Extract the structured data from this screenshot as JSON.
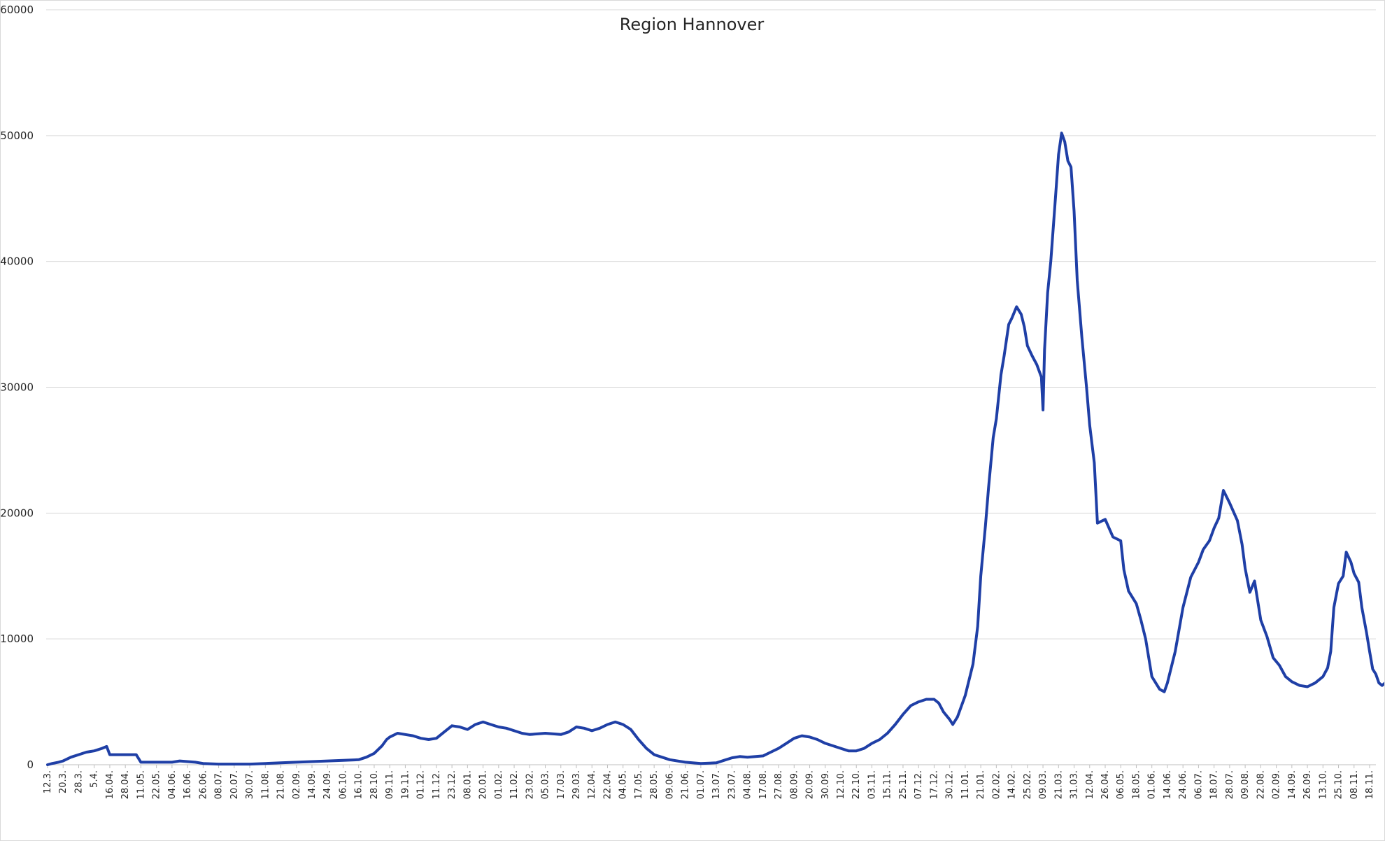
{
  "chart_data": {
    "type": "line",
    "title": "Region Hannover",
    "xlabel": "",
    "ylabel": "",
    "ylim": [
      0,
      60000
    ],
    "yticks": [
      0,
      10000,
      20000,
      30000,
      40000,
      50000,
      60000
    ],
    "ytick_labels": [
      "0",
      "10000",
      "20000",
      "30000",
      "40000",
      "50000",
      "60000"
    ],
    "grid": true,
    "legend": "none",
    "colors": {
      "series": "#1f3fa6",
      "grid": "#d9d9d9",
      "text": "#262626"
    },
    "categories": [
      "12.3.",
      "20.3.",
      "28.3.",
      "5.4.",
      "16.04.",
      "28.04.",
      "11.05.",
      "22.05.",
      "04.06.",
      "16.06.",
      "26.06.",
      "08.07.",
      "20.07.",
      "30.07.",
      "11.08.",
      "21.08.",
      "02.09.",
      "14.09.",
      "24.09.",
      "06.10.",
      "16.10.",
      "28.10.",
      "09.11.",
      "19.11.",
      "01.12.",
      "11.12.",
      "23.12.",
      "08.01.",
      "20.01.",
      "01.02.",
      "11.02.",
      "23.02.",
      "05.03.",
      "17.03.",
      "29.03.",
      "12.04.",
      "22.04.",
      "04.05.",
      "17.05.",
      "28.05.",
      "09.06.",
      "21.06.",
      "01.07.",
      "13.07.",
      "23.07.",
      "04.08.",
      "17.08.",
      "27.08.",
      "08.09.",
      "20.09.",
      "30.09.",
      "12.10.",
      "22.10.",
      "03.11.",
      "15.11.",
      "25.11.",
      "07.12.",
      "17.12.",
      "30.12.",
      "11.01.",
      "21.01.",
      "02.02.",
      "14.02.",
      "25.02.",
      "09.03.",
      "21.03.",
      "31.03.",
      "12.04.",
      "26.04.",
      "06.05.",
      "18.05.",
      "01.06.",
      "14.06.",
      "24.06.",
      "06.07.",
      "18.07.",
      "28.07.",
      "09.08.",
      "22.08.",
      "02.09.",
      "14.09.",
      "26.09.",
      "13.10.",
      "25.10.",
      "08.11.",
      "18.11."
    ],
    "series": [
      {
        "values": [
          [
            0,
            0
          ],
          [
            0.3,
            100
          ],
          [
            0.7,
            200
          ],
          [
            1,
            300
          ],
          [
            1.5,
            600
          ],
          [
            2,
            800
          ],
          [
            2.5,
            1000
          ],
          [
            3,
            1100
          ],
          [
            3.5,
            1300
          ],
          [
            3.8,
            1450
          ],
          [
            4,
            800
          ],
          [
            5,
            800
          ],
          [
            5.7,
            800
          ],
          [
            6,
            200
          ],
          [
            7,
            200
          ],
          [
            8,
            200
          ],
          [
            8.5,
            300
          ],
          [
            9,
            250
          ],
          [
            9.5,
            200
          ],
          [
            10,
            100
          ],
          [
            11,
            50
          ],
          [
            12,
            50
          ],
          [
            13,
            50
          ],
          [
            14,
            100
          ],
          [
            15,
            150
          ],
          [
            16,
            200
          ],
          [
            17,
            250
          ],
          [
            18,
            300
          ],
          [
            19,
            350
          ],
          [
            20,
            400
          ],
          [
            20.5,
            600
          ],
          [
            21,
            900
          ],
          [
            21.5,
            1500
          ],
          [
            21.8,
            2000
          ],
          [
            22,
            2200
          ],
          [
            22.5,
            2500
          ],
          [
            23,
            2400
          ],
          [
            23.5,
            2300
          ],
          [
            24,
            2100
          ],
          [
            24.5,
            2000
          ],
          [
            25,
            2100
          ],
          [
            25.5,
            2600
          ],
          [
            26,
            3100
          ],
          [
            26.5,
            3000
          ],
          [
            27,
            2800
          ],
          [
            27.5,
            3200
          ],
          [
            28,
            3400
          ],
          [
            28.5,
            3200
          ],
          [
            29,
            3000
          ],
          [
            29.5,
            2900
          ],
          [
            30,
            2700
          ],
          [
            30.5,
            2500
          ],
          [
            31,
            2400
          ],
          [
            32,
            2500
          ],
          [
            33,
            2400
          ],
          [
            33.5,
            2600
          ],
          [
            34,
            3000
          ],
          [
            34.5,
            2900
          ],
          [
            35,
            2700
          ],
          [
            35.5,
            2900
          ],
          [
            36,
            3200
          ],
          [
            36.5,
            3400
          ],
          [
            37,
            3200
          ],
          [
            37.5,
            2800
          ],
          [
            38,
            2000
          ],
          [
            38.5,
            1300
          ],
          [
            39,
            800
          ],
          [
            39.5,
            600
          ],
          [
            40,
            400
          ],
          [
            41,
            200
          ],
          [
            42,
            100
          ],
          [
            43,
            150
          ],
          [
            43.5,
            350
          ],
          [
            44,
            550
          ],
          [
            44.5,
            650
          ],
          [
            45,
            600
          ],
          [
            46,
            700
          ],
          [
            46.5,
            1000
          ],
          [
            47,
            1300
          ],
          [
            47.5,
            1700
          ],
          [
            48,
            2100
          ],
          [
            48.5,
            2300
          ],
          [
            49,
            2200
          ],
          [
            49.5,
            2000
          ],
          [
            50,
            1700
          ],
          [
            50.5,
            1500
          ],
          [
            51,
            1300
          ],
          [
            51.5,
            1100
          ],
          [
            52,
            1100
          ],
          [
            52.5,
            1300
          ],
          [
            53,
            1700
          ],
          [
            53.5,
            2000
          ],
          [
            54,
            2500
          ],
          [
            54.5,
            3200
          ],
          [
            55,
            4000
          ],
          [
            55.5,
            4700
          ],
          [
            56,
            5000
          ],
          [
            56.5,
            5200
          ],
          [
            57,
            5200
          ],
          [
            57.3,
            4900
          ],
          [
            57.6,
            4200
          ],
          [
            58,
            3600
          ],
          [
            58.2,
            3200
          ],
          [
            58.5,
            3800
          ],
          [
            59,
            5500
          ],
          [
            59.5,
            8000
          ],
          [
            59.8,
            11000
          ],
          [
            60,
            15000
          ],
          [
            60.3,
            19000
          ],
          [
            60.5,
            22000
          ],
          [
            60.8,
            26000
          ],
          [
            61,
            27500
          ],
          [
            61.3,
            31000
          ],
          [
            61.5,
            32500
          ],
          [
            61.8,
            35000
          ],
          [
            62,
            35500
          ],
          [
            62.3,
            36400
          ],
          [
            62.6,
            35800
          ],
          [
            62.8,
            34800
          ],
          [
            63,
            33300
          ],
          [
            63.3,
            32500
          ],
          [
            63.6,
            31800
          ],
          [
            63.9,
            30800
          ],
          [
            64,
            28200
          ],
          [
            64.1,
            33000
          ],
          [
            64.3,
            37500
          ],
          [
            64.5,
            40000
          ],
          [
            64.8,
            45000
          ],
          [
            65,
            48500
          ],
          [
            65.2,
            50200
          ],
          [
            65.4,
            49500
          ],
          [
            65.6,
            48000
          ],
          [
            65.8,
            47500
          ],
          [
            66,
            44000
          ],
          [
            66.2,
            38500
          ],
          [
            66.5,
            34000
          ],
          [
            66.8,
            30000
          ],
          [
            67,
            27000
          ],
          [
            67.3,
            24000
          ],
          [
            67.5,
            19200
          ],
          [
            68,
            19500
          ],
          [
            68.5,
            18100
          ],
          [
            69,
            17800
          ],
          [
            69.2,
            15500
          ],
          [
            69.5,
            13800
          ],
          [
            70,
            12800
          ],
          [
            70.3,
            11500
          ],
          [
            70.6,
            10000
          ],
          [
            71,
            7000
          ],
          [
            71.5,
            6000
          ],
          [
            71.8,
            5800
          ],
          [
            72,
            6500
          ],
          [
            72.5,
            9000
          ],
          [
            73,
            12500
          ],
          [
            73.5,
            14900
          ],
          [
            74,
            16100
          ],
          [
            74.3,
            17100
          ],
          [
            74.7,
            17800
          ],
          [
            75,
            18800
          ],
          [
            75.3,
            19600
          ],
          [
            75.6,
            21800
          ],
          [
            76,
            20800
          ],
          [
            76.5,
            19400
          ],
          [
            76.8,
            17500
          ],
          [
            77,
            15600
          ],
          [
            77.3,
            13700
          ],
          [
            77.6,
            14600
          ],
          [
            78,
            11500
          ],
          [
            78.4,
            10200
          ],
          [
            78.8,
            8500
          ],
          [
            79.2,
            7900
          ],
          [
            79.6,
            7000
          ],
          [
            80,
            6600
          ],
          [
            80.5,
            6300
          ],
          [
            81,
            6200
          ],
          [
            81.5,
            6500
          ],
          [
            82,
            7000
          ],
          [
            82.3,
            7700
          ],
          [
            82.5,
            9000
          ],
          [
            82.7,
            12500
          ],
          [
            83,
            14400
          ],
          [
            83.3,
            15000
          ],
          [
            83.5,
            16900
          ],
          [
            83.8,
            16100
          ],
          [
            84,
            15200
          ],
          [
            84.3,
            14500
          ],
          [
            84.5,
            12500
          ],
          [
            84.8,
            10500
          ],
          [
            85,
            9000
          ],
          [
            85.2,
            7600
          ],
          [
            85.4,
            7200
          ],
          [
            85.6,
            6500
          ],
          [
            85.8,
            6300
          ],
          [
            86,
            6500
          ]
        ]
      }
    ]
  }
}
